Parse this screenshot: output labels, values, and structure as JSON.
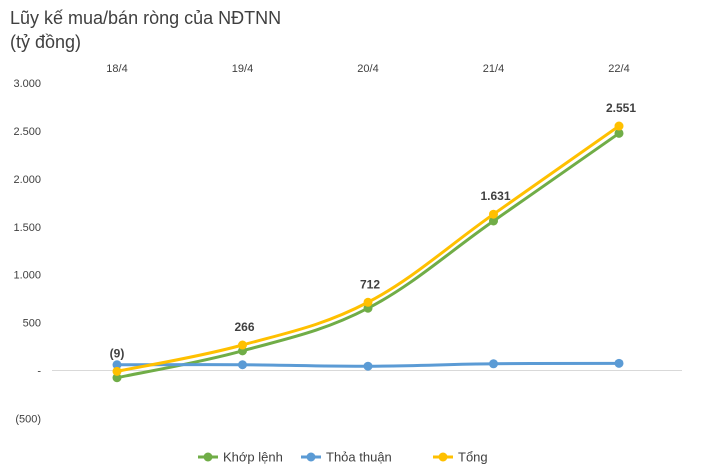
{
  "chart_data": {
    "type": "line",
    "title": "Lũy kế mua/bán ròng của NĐTNN",
    "subtitle": "(tỷ đồng)",
    "categories": [
      "18/4",
      "19/4",
      "20/4",
      "21/4",
      "22/4"
    ],
    "y_ticks": [
      "3.000",
      "2.500",
      "2.000",
      "1.500",
      "1.000",
      "500",
      "-",
      "(500)"
    ],
    "ylim": [
      -500,
      3000
    ],
    "grid": false,
    "legend_position": "bottom",
    "series": [
      {
        "name": "Khớp lệnh",
        "color": "#70AD47",
        "values": [
          -75,
          205,
          650,
          1560,
          2475
        ]
      },
      {
        "name": "Thỏa thuận",
        "color": "#5B9BD5",
        "values": [
          60,
          60,
          45,
          70,
          75
        ]
      },
      {
        "name": "Tổng",
        "color": "#FFC000",
        "values": [
          -9,
          266,
          712,
          1631,
          2551
        ]
      }
    ],
    "data_labels": [
      "(9)",
      "266",
      "712",
      "1.631",
      "2.551"
    ]
  }
}
